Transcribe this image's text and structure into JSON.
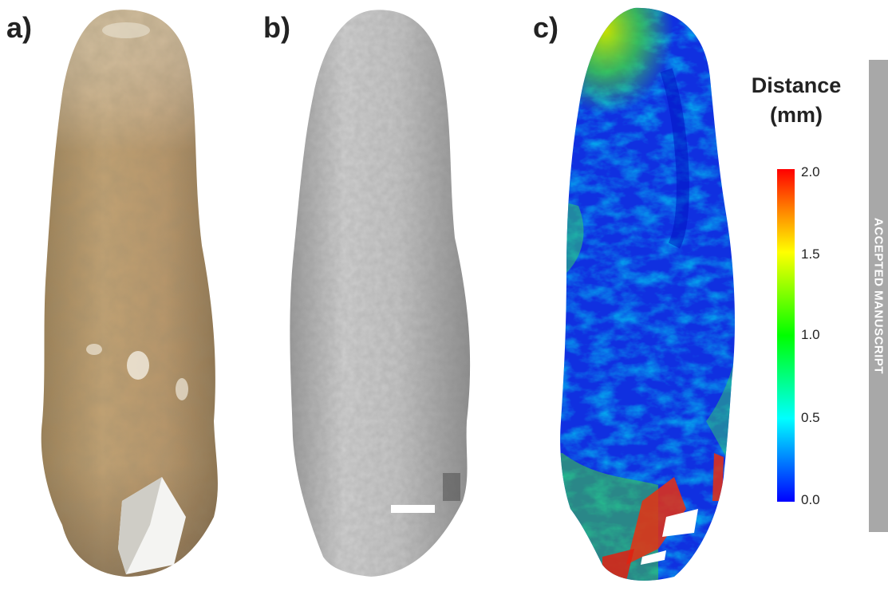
{
  "panels": {
    "a": {
      "label": "a)",
      "content": "photograph"
    },
    "b": {
      "label": "b)",
      "content": "3D model"
    },
    "c": {
      "label": "c)",
      "content": "distance map"
    }
  },
  "legend": {
    "title_line1": "Distance",
    "title_line2": "(mm)",
    "ticks": [
      "2.0",
      "1.5",
      "1.0",
      "0.5",
      "0.0"
    ],
    "colors": [
      "#ff0000",
      "#ffff00",
      "#00ff00",
      "#00ffff",
      "#0000ff"
    ]
  },
  "banner": {
    "text": "ACCEPTED MANUSCRIPT"
  }
}
